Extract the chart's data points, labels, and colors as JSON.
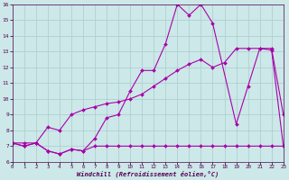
{
  "background_color": "#cce8e8",
  "grid_color": "#aacccc",
  "line_color": "#aa00aa",
  "x_values": [
    0,
    1,
    2,
    3,
    4,
    5,
    6,
    7,
    8,
    9,
    10,
    11,
    12,
    13,
    14,
    15,
    16,
    17,
    18,
    19,
    20,
    21,
    22,
    23
  ],
  "line_curvy": [
    7.2,
    7.0,
    7.2,
    6.7,
    6.5,
    6.8,
    6.7,
    7.5,
    8.8,
    9.0,
    10.5,
    11.8,
    11.8,
    13.5,
    16.0,
    15.3,
    16.0,
    14.8,
    null,
    8.4,
    10.8,
    13.2,
    13.2,
    9.0
  ],
  "line_flat": [
    7.2,
    7.0,
    7.2,
    6.7,
    6.5,
    6.8,
    6.7,
    7.0,
    7.0,
    7.0,
    7.0,
    7.0,
    7.0,
    7.0,
    7.0,
    7.0,
    7.0,
    7.0,
    7.0,
    7.0,
    7.0,
    7.0,
    7.0,
    7.0
  ],
  "line_diag": [
    7.2,
    7.2,
    7.2,
    8.2,
    8.0,
    9.0,
    9.3,
    9.5,
    9.7,
    9.8,
    10.0,
    10.3,
    10.8,
    11.3,
    11.8,
    12.2,
    12.5,
    12.0,
    12.3,
    13.2,
    13.2,
    13.2,
    13.1,
    7.0
  ],
  "ylim": [
    6,
    16
  ],
  "xlim": [
    0,
    23
  ],
  "xlabel": "Windchill (Refroidissement éolien,°C)",
  "yticks": [
    6,
    7,
    8,
    9,
    10,
    11,
    12,
    13,
    14,
    15,
    16
  ],
  "xticks": [
    0,
    1,
    2,
    3,
    4,
    5,
    6,
    7,
    8,
    9,
    10,
    11,
    12,
    13,
    14,
    15,
    16,
    17,
    18,
    19,
    20,
    21,
    22,
    23
  ],
  "xlabels": [
    "0",
    "1",
    "2",
    "3",
    "4",
    "5",
    "6",
    "7",
    "8",
    "9",
    "10",
    "11",
    "12",
    "13",
    "14",
    "15",
    "16",
    "17",
    "18",
    "19",
    "20",
    "21",
    "22",
    "23"
  ]
}
